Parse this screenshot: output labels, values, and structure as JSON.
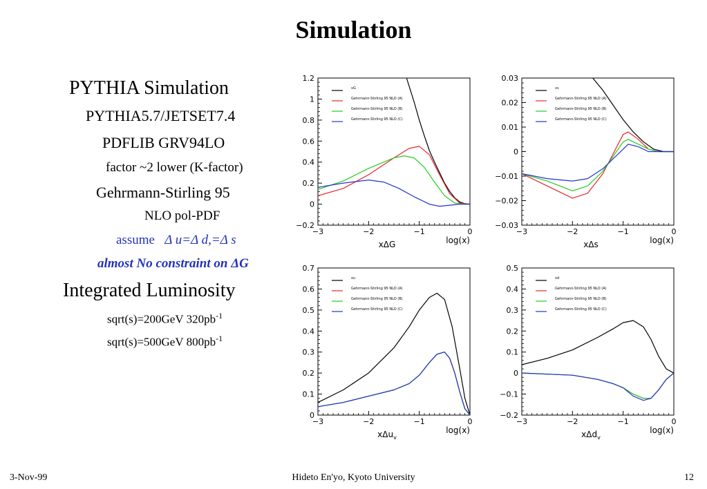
{
  "title": "Simulation",
  "left_text": {
    "pythia": "PYTHIA Simulation",
    "pythia_ver": "PYTHIA5.7/JETSET7.4",
    "pdflib": "PDFLIB GRV94LO",
    "factor": "factor ~2 lower (K-factor)",
    "gehrmann": "Gehrmann-Stirling 95",
    "nlo": "NLO pol-PDF",
    "assume_word": "assume",
    "assume_eq": "Δ u=Δ d,=Δ s",
    "constraint": "almost No constraint on ΔG",
    "lumi": "Integrated Luminosity",
    "lumi200": "sqrt(s)=200GeV   320pb",
    "lumi500": "sqrt(s)=500GeV   800pb",
    "lumi_sup": "-1"
  },
  "footer": {
    "date": "3-Nov-99",
    "author": "Hideto En'yo, Kyoto University",
    "page": "12"
  },
  "colors": {
    "black": "#000000",
    "red": "#e8262a",
    "green": "#22cc22",
    "blue": "#2233cc",
    "assume_blue": "#2233bb"
  },
  "chart_data": [
    {
      "type": "line",
      "xlabel": "xΔG",
      "xlabel_right": "log(x)",
      "xlim": [
        -3,
        0
      ],
      "ylim": [
        -0.2,
        1.2
      ],
      "xticks": [
        -3,
        -2,
        -1,
        0
      ],
      "yticks": [
        -0.2,
        0,
        0.2,
        0.4,
        0.6,
        0.8,
        1,
        1.2
      ],
      "xtick_labels": [
        "−3",
        "−2",
        "−1",
        "0"
      ],
      "ytick_labels": [
        "−0.2",
        "0",
        "0.2",
        "0.4",
        "0.6",
        "0.8",
        "1",
        "1.2"
      ],
      "legend": [
        "vG",
        "Gehrmann-Stirling 95 NLO (A)",
        "Gehrmann-Stirling 95 NLO (B)",
        "Gehrmann-Stirling 95 NLO (C)"
      ],
      "series": [
        {
          "color": "#000000",
          "x": [
            -1.25,
            -1.1,
            -1.0,
            -0.9,
            -0.8,
            -0.7,
            -0.6,
            -0.5,
            -0.4,
            -0.3,
            -0.2,
            -0.1,
            0
          ],
          "y": [
            1.2,
            0.97,
            0.8,
            0.65,
            0.51,
            0.4,
            0.3,
            0.2,
            0.12,
            0.06,
            0.02,
            0.005,
            0
          ]
        },
        {
          "color": "#e8262a",
          "x": [
            -3,
            -2.5,
            -2.0,
            -1.5,
            -1.2,
            -1.0,
            -0.8,
            -0.6,
            -0.4,
            -0.2,
            0
          ],
          "y": [
            0.08,
            0.15,
            0.28,
            0.44,
            0.53,
            0.55,
            0.47,
            0.28,
            0.1,
            0.01,
            0
          ]
        },
        {
          "color": "#22cc22",
          "x": [
            -3,
            -2.5,
            -2.0,
            -1.5,
            -1.3,
            -1.1,
            -0.9,
            -0.7,
            -0.5,
            -0.3,
            -0.1,
            0
          ],
          "y": [
            0.14,
            0.22,
            0.34,
            0.44,
            0.46,
            0.44,
            0.35,
            0.21,
            0.08,
            0.01,
            0,
            0
          ]
        },
        {
          "color": "#2233cc",
          "x": [
            -3,
            -2.5,
            -2.0,
            -1.7,
            -1.4,
            -1.1,
            -0.8,
            -0.6,
            -0.4,
            -0.2,
            0
          ],
          "y": [
            0.16,
            0.2,
            0.23,
            0.21,
            0.15,
            0.07,
            0.0,
            -0.02,
            -0.01,
            0.0,
            0
          ]
        }
      ]
    },
    {
      "type": "line",
      "xlabel": "xΔs",
      "xlabel_right": "log(x)",
      "xlim": [
        -3,
        0
      ],
      "ylim": [
        -0.03,
        0.03
      ],
      "xticks": [
        -3,
        -2,
        -1,
        0
      ],
      "yticks": [
        -0.03,
        -0.02,
        -0.01,
        0,
        0.01,
        0.02,
        0.03
      ],
      "xtick_labels": [
        "−3",
        "−2",
        "−1",
        "0"
      ],
      "ytick_labels": [
        "−0.03",
        "−0.02",
        "−0.01",
        "0",
        "0.01",
        "0.02",
        "0.03"
      ],
      "legend": [
        "vs",
        "Gehrmann-Stirling 95 NLO (A)",
        "Gehrmann-Stirling 95 NLO (B)",
        "Gehrmann-Stirling 95 NLO (C)"
      ],
      "series": [
        {
          "color": "#000000",
          "x": [
            -1.6,
            -1.4,
            -1.2,
            -1.0,
            -0.8,
            -0.6,
            -0.4,
            -0.2,
            0
          ],
          "y": [
            0.03,
            0.025,
            0.019,
            0.013,
            0.008,
            0.004,
            0.001,
            0.0,
            0
          ]
        },
        {
          "color": "#e8262a",
          "x": [
            -3,
            -2.5,
            -2.0,
            -1.7,
            -1.4,
            -1.2,
            -1.0,
            -0.9,
            -0.7,
            -0.5,
            -0.3,
            0
          ],
          "y": [
            -0.009,
            -0.014,
            -0.019,
            -0.017,
            -0.009,
            -0.001,
            0.007,
            0.008,
            0.005,
            0.001,
            0,
            0
          ]
        },
        {
          "color": "#22cc22",
          "x": [
            -3,
            -2.5,
            -2.0,
            -1.7,
            -1.4,
            -1.2,
            -1.0,
            -0.9,
            -0.7,
            -0.5,
            -0.3,
            0
          ],
          "y": [
            -0.009,
            -0.012,
            -0.016,
            -0.014,
            -0.008,
            -0.002,
            0.004,
            0.005,
            0.003,
            0.001,
            0,
            0
          ]
        },
        {
          "color": "#2233cc",
          "x": [
            -3,
            -2.5,
            -2.0,
            -1.7,
            -1.4,
            -1.2,
            -1.0,
            -0.9,
            -0.7,
            -0.5,
            -0.3,
            0
          ],
          "y": [
            -0.009,
            -0.011,
            -0.012,
            -0.011,
            -0.007,
            -0.003,
            0.001,
            0.003,
            0.002,
            0.0,
            0,
            0
          ]
        }
      ]
    },
    {
      "type": "line",
      "xlabel": "xΔu",
      "xlabel_sub": "v",
      "xlabel_right": "log(x)",
      "xlim": [
        -3,
        0
      ],
      "ylim": [
        0,
        0.7
      ],
      "xticks": [
        -3,
        -2,
        -1,
        0
      ],
      "yticks": [
        0,
        0.1,
        0.2,
        0.3,
        0.4,
        0.5,
        0.6,
        0.7
      ],
      "xtick_labels": [
        "−3",
        "−2",
        "−1",
        "0"
      ],
      "ytick_labels": [
        "0",
        "0.1",
        "0.2",
        "0.3",
        "0.4",
        "0.5",
        "0.6",
        "0.7"
      ],
      "legend": [
        "xu",
        "Gehrmann-Stirling 95 NLO (A)",
        "Gehrmann-Stirling 95 NLO (B)",
        "Gehrmann-Stirling 95 NLO (C)"
      ],
      "series": [
        {
          "color": "#000000",
          "x": [
            -3,
            -2.5,
            -2.0,
            -1.5,
            -1.2,
            -1.0,
            -0.8,
            -0.65,
            -0.5,
            -0.35,
            -0.2,
            -0.1,
            0
          ],
          "y": [
            0.06,
            0.12,
            0.2,
            0.32,
            0.42,
            0.5,
            0.56,
            0.58,
            0.55,
            0.42,
            0.22,
            0.08,
            0
          ]
        },
        {
          "color": "#e8262a",
          "x": [
            -3,
            -2.5,
            -2.0,
            -1.5,
            -1.2,
            -1.0,
            -0.8,
            -0.65,
            -0.5,
            -0.4,
            -0.3,
            -0.2,
            -0.1,
            0
          ],
          "y": [
            0.04,
            0.06,
            0.09,
            0.12,
            0.15,
            0.19,
            0.25,
            0.29,
            0.3,
            0.27,
            0.2,
            0.11,
            0.03,
            0
          ]
        },
        {
          "color": "#22cc22",
          "x": [
            -3,
            -2.5,
            -2.0,
            -1.5,
            -1.2,
            -1.0,
            -0.8,
            -0.65,
            -0.5,
            -0.4,
            -0.3,
            -0.2,
            -0.1,
            0
          ],
          "y": [
            0.04,
            0.06,
            0.09,
            0.12,
            0.15,
            0.19,
            0.25,
            0.29,
            0.3,
            0.27,
            0.2,
            0.11,
            0.03,
            0
          ]
        },
        {
          "color": "#2233cc",
          "x": [
            -3,
            -2.5,
            -2.0,
            -1.5,
            -1.2,
            -1.0,
            -0.8,
            -0.65,
            -0.5,
            -0.4,
            -0.3,
            -0.2,
            -0.1,
            0
          ],
          "y": [
            0.04,
            0.06,
            0.09,
            0.12,
            0.15,
            0.19,
            0.25,
            0.29,
            0.3,
            0.27,
            0.2,
            0.11,
            0.03,
            0
          ]
        }
      ]
    },
    {
      "type": "line",
      "xlabel": "xΔd",
      "xlabel_sub": "v",
      "xlabel_right": "log(x)",
      "xlim": [
        -3,
        0
      ],
      "ylim": [
        -0.2,
        0.5
      ],
      "xticks": [
        -3,
        -2,
        -1,
        0
      ],
      "yticks": [
        -0.2,
        -0.1,
        0,
        0.1,
        0.2,
        0.3,
        0.4,
        0.5
      ],
      "xtick_labels": [
        "−3",
        "−2",
        "−1",
        "0"
      ],
      "ytick_labels": [
        "−0.2",
        "−0.1",
        "0",
        "0.1",
        "0.2",
        "0.3",
        "0.4",
        "0.5"
      ],
      "legend": [
        "xd",
        "Gehrmann-Stirling 95 NLO (A)",
        "Gehrmann-Stirling 95 NLO (B)",
        "Gehrmann-Stirling 95 NLO (C)"
      ],
      "series": [
        {
          "color": "#000000",
          "x": [
            -3,
            -2.5,
            -2.0,
            -1.5,
            -1.2,
            -1.0,
            -0.8,
            -0.6,
            -0.45,
            -0.3,
            -0.15,
            0
          ],
          "y": [
            0.04,
            0.07,
            0.11,
            0.17,
            0.21,
            0.24,
            0.25,
            0.22,
            0.16,
            0.08,
            0.02,
            0
          ]
        },
        {
          "color": "#e8262a",
          "x": [
            -3,
            -2.5,
            -2.0,
            -1.5,
            -1.2,
            -1.0,
            -0.8,
            -0.6,
            -0.45,
            -0.3,
            -0.15,
            0
          ],
          "y": [
            0.0,
            -0.005,
            -0.01,
            -0.03,
            -0.05,
            -0.07,
            -0.1,
            -0.12,
            -0.12,
            -0.08,
            -0.03,
            0
          ]
        },
        {
          "color": "#22cc22",
          "x": [
            -3,
            -2.5,
            -2.0,
            -1.5,
            -1.2,
            -1.0,
            -0.8,
            -0.6,
            -0.45,
            -0.3,
            -0.15,
            0
          ],
          "y": [
            0.0,
            -0.005,
            -0.01,
            -0.03,
            -0.05,
            -0.07,
            -0.1,
            -0.12,
            -0.12,
            -0.08,
            -0.03,
            0
          ]
        },
        {
          "color": "#2233cc",
          "x": [
            -3,
            -2.5,
            -2.0,
            -1.5,
            -1.2,
            -1.0,
            -0.8,
            -0.6,
            -0.45,
            -0.3,
            -0.15,
            0
          ],
          "y": [
            0.0,
            -0.005,
            -0.01,
            -0.03,
            -0.05,
            -0.07,
            -0.11,
            -0.13,
            -0.12,
            -0.08,
            -0.03,
            0
          ]
        }
      ]
    }
  ]
}
